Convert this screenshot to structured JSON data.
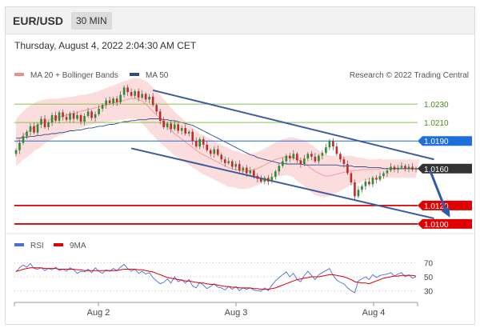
{
  "header": {
    "symbol": "EUR/USD",
    "timeframe": "30 MIN"
  },
  "datetime": "Thursday, August 4, 2022 2:04:30 AM CET",
  "copyright": "Research © 2022 Trading Central",
  "colors": {
    "bollinger": "#f28b8b",
    "ma50": "#2e4a8c",
    "channel": "#3b5ba0",
    "support": "#e00000",
    "resistance": "#1e6fd9",
    "current": "#333333",
    "target_green": "#8bc34a",
    "rsi": "#4a6fd8",
    "rsi_ma": "#e00000"
  },
  "chart_data": [
    {
      "type": "candlestick",
      "legend": [
        {
          "name": "MA 20 + Bollinger Bands",
          "color": "#f28b8b"
        },
        {
          "name": "MA 50",
          "color": "#2e4a8c"
        }
      ],
      "x_ticks": [
        "Aug 2",
        "Aug 3",
        "Aug 4"
      ],
      "ylim": [
        1.0093,
        1.027
      ],
      "levels": [
        {
          "value": "1.0230",
          "kind": "target"
        },
        {
          "value": "1.0210",
          "kind": "target"
        },
        {
          "value": "1.0190",
          "kind": "resistance"
        },
        {
          "value": "1.0160",
          "kind": "current"
        },
        {
          "value": "1.0120",
          "kind": "support"
        },
        {
          "value": "1.0100",
          "kind": "support"
        }
      ],
      "close": [
        1.018,
        1.0188,
        1.0195,
        1.02,
        1.0206,
        1.0199,
        1.0208,
        1.0214,
        1.0205,
        1.021,
        1.0218,
        1.0212,
        1.0221,
        1.0216,
        1.0213,
        1.022,
        1.0214,
        1.0218,
        1.0211,
        1.0217,
        1.0222,
        1.0215,
        1.0219,
        1.0225,
        1.0229,
        1.0234,
        1.0231,
        1.0236,
        1.0232,
        1.024,
        1.0248,
        1.0243,
        1.0239,
        1.0244,
        1.0237,
        1.0241,
        1.0235,
        1.0238,
        1.0229,
        1.0222,
        1.0212,
        1.0205,
        1.0209,
        1.0203,
        1.0208,
        1.0201,
        1.0204,
        1.0198,
        1.02,
        1.019,
        1.0184,
        1.0192,
        1.0186,
        1.018,
        1.0176,
        1.0181,
        1.0175,
        1.017,
        1.0166,
        1.0168,
        1.0162,
        1.0165,
        1.0158,
        1.0161,
        1.0155,
        1.0158,
        1.0152,
        1.0149,
        1.0146,
        1.015,
        1.0146,
        1.0151,
        1.0157,
        1.0163,
        1.0168,
        1.0174,
        1.0171,
        1.0176,
        1.0169,
        1.0165,
        1.0171,
        1.0176,
        1.0173,
        1.0168,
        1.0174,
        1.0177,
        1.0183,
        1.019,
        1.0184,
        1.0176,
        1.017,
        1.0165,
        1.0155,
        1.0145,
        1.013,
        1.0137,
        1.0141,
        1.0146,
        1.0143,
        1.015,
        1.0148,
        1.0152,
        1.0155,
        1.0158,
        1.0162,
        1.0159,
        1.0161,
        1.0163,
        1.016,
        1.0162,
        1.0159,
        1.016
      ],
      "bollinger_mid": [
        1.0188,
        1.0192,
        1.0196,
        1.0199,
        1.0202,
        1.0205,
        1.0207,
        1.0209,
        1.0211,
        1.0213,
        1.0214,
        1.0215,
        1.0216,
        1.0217,
        1.0218,
        1.0219,
        1.022,
        1.0221,
        1.0222,
        1.0223,
        1.0224,
        1.0225,
        1.0226,
        1.0227,
        1.0228,
        1.0229,
        1.023,
        1.0231,
        1.0232,
        1.0233,
        1.0234,
        1.0235,
        1.0236,
        1.0236,
        1.0235,
        1.0233,
        1.023,
        1.0226,
        1.0222,
        1.0218,
        1.0214,
        1.021,
        1.0206,
        1.0202,
        1.0198,
        1.0195,
        1.0192,
        1.0189,
        1.0186,
        1.0183,
        1.018,
        1.0177,
        1.0175,
        1.0173,
        1.0171,
        1.0169,
        1.0167,
        1.0165,
        1.0163,
        1.0161,
        1.016,
        1.0159,
        1.0158,
        1.0157,
        1.0157,
        1.0158,
        1.0159,
        1.016,
        1.0162,
        1.0164,
        1.0166,
        1.0168,
        1.017,
        1.0171,
        1.0172,
        1.0173,
        1.0173,
        1.0172,
        1.017,
        1.0168,
        1.0166,
        1.0163,
        1.016,
        1.0157,
        1.0155,
        1.0153,
        1.0152,
        1.0152,
        1.0153,
        1.0154,
        1.0155,
        1.0156,
        1.0157,
        1.0158,
        1.0158,
        1.0158,
        1.0159,
        1.0159,
        1.0159,
        1.0159,
        1.0159,
        1.016,
        1.016,
        1.016,
        1.016,
        1.016,
        1.016,
        1.016,
        1.016,
        1.016,
        1.016,
        1.016,
        1.016
      ],
      "bollinger_width": [
        0.0025,
        0.0026,
        0.0026,
        0.0027,
        0.0027,
        0.0026,
        0.0026,
        0.0025,
        0.0024,
        0.0023,
        0.0022,
        0.0021,
        0.002,
        0.002,
        0.0019,
        0.0019,
        0.0018,
        0.0018,
        0.0018,
        0.0017,
        0.0017,
        0.0017,
        0.0017,
        0.0017,
        0.0018,
        0.0018,
        0.0019,
        0.0019,
        0.002,
        0.002,
        0.0021,
        0.0021,
        0.0022,
        0.0022,
        0.0023,
        0.0024,
        0.0025,
        0.0026,
        0.0026,
        0.0026,
        0.0026,
        0.0025,
        0.0025,
        0.0024,
        0.0024,
        0.0023,
        0.0023,
        0.0022,
        0.0022,
        0.0022,
        0.0021,
        0.0021,
        0.0021,
        0.0021,
        0.0021,
        0.0021,
        0.0021,
        0.0021,
        0.0021,
        0.0021,
        0.002,
        0.002,
        0.002,
        0.0019,
        0.0019,
        0.0019,
        0.0018,
        0.0018,
        0.0018,
        0.0018,
        0.0018,
        0.0018,
        0.0019,
        0.0019,
        0.002,
        0.002,
        0.0021,
        0.0022,
        0.0023,
        0.0024,
        0.0025,
        0.0026,
        0.0026,
        0.0026,
        0.0025,
        0.0024,
        0.0023,
        0.0022,
        0.0021,
        0.002,
        0.0019,
        0.0018,
        0.0017,
        0.0016,
        0.0015,
        0.0014,
        0.0013,
        0.0012,
        0.0011,
        0.0011,
        0.0011,
        0.0011,
        0.001,
        0.001,
        0.001,
        0.001,
        0.001,
        0.001,
        0.001,
        0.001,
        0.001,
        0.001,
        0.001,
        0.001
      ],
      "ma50": [
        1.0193,
        1.0193,
        1.0194,
        1.0194,
        1.0195,
        1.0195,
        1.0196,
        1.0196,
        1.0197,
        1.0197,
        1.0198,
        1.0198,
        1.0199,
        1.0199,
        1.02,
        1.0201,
        1.0201,
        1.0202,
        1.0202,
        1.0203,
        1.0204,
        1.0204,
        1.0205,
        1.0206,
        1.0206,
        1.0207,
        1.0208,
        1.0208,
        1.0209,
        1.021,
        1.0211,
        1.0211,
        1.0212,
        1.0212,
        1.0213,
        1.0213,
        1.0213,
        1.0214,
        1.0214,
        1.0214,
        1.0214,
        1.0213,
        1.0213,
        1.0212,
        1.0212,
        1.0211,
        1.021,
        1.0209,
        1.0208,
        1.0207,
        1.0205,
        1.0203,
        1.0201,
        1.0199,
        1.0197,
        1.0195,
        1.0193,
        1.0191,
        1.0189,
        1.0187,
        1.0185,
        1.0183,
        1.0181,
        1.0179,
        1.0177,
        1.0175,
        1.0174,
        1.0172,
        1.0171,
        1.017,
        1.0169,
        1.0168,
        1.0167,
        1.0166,
        1.0166,
        1.0165,
        1.0165,
        1.0165,
        1.0165,
        1.0165,
        1.0164,
        1.0164,
        1.0164,
        1.0164,
        1.0164,
        1.0164,
        1.0164,
        1.0164,
        1.0164,
        1.0164,
        1.0163,
        1.0163,
        1.0163,
        1.0163,
        1.0162,
        1.0162,
        1.0162,
        1.0162,
        1.0161,
        1.0161,
        1.0161,
        1.0161,
        1.016,
        1.016,
        1.016,
        1.016,
        1.016,
        1.016,
        1.016,
        1.016,
        1.016,
        1.016,
        1.016
      ],
      "channel": [
        {
          "from": [
            38,
            1.0245
          ],
          "to": [
            116,
            1.017
          ]
        },
        {
          "from": [
            32,
            1.0182
          ],
          "to": [
            116,
            1.0106
          ]
        }
      ],
      "forecast_arrow": {
        "from": [
          115,
          1.0157
        ],
        "to": [
          120,
          1.0108
        ]
      }
    },
    {
      "type": "line",
      "legend": [
        {
          "name": "RSI",
          "color": "#4a6fd8"
        },
        {
          "name": "9MA",
          "color": "#e00000"
        }
      ],
      "y_ticks": [
        "70",
        "50",
        "30"
      ],
      "ylim": [
        20,
        80
      ],
      "rsi": [
        57,
        63,
        67,
        64,
        69,
        62,
        61,
        63,
        59,
        62,
        60,
        64,
        59,
        61,
        58,
        63,
        60,
        55,
        58,
        57,
        61,
        56,
        63,
        58,
        55,
        60,
        58,
        62,
        59,
        64,
        68,
        62,
        58,
        61,
        55,
        58,
        54,
        56,
        49,
        44,
        40,
        42,
        47,
        41,
        50,
        43,
        46,
        41,
        46,
        37,
        34,
        42,
        38,
        33,
        36,
        40,
        35,
        34,
        31,
        36,
        32,
        36,
        30,
        34,
        32,
        34,
        31,
        30,
        29,
        34,
        30,
        38,
        44,
        49,
        53,
        57,
        50,
        55,
        46,
        43,
        52,
        58,
        52,
        46,
        53,
        56,
        59,
        62,
        52,
        45,
        42,
        40,
        34,
        30,
        27,
        44,
        47,
        50,
        46,
        53,
        49,
        52,
        53,
        54,
        56,
        51,
        54,
        56,
        50,
        53,
        48,
        50
      ],
      "rsi_ma": [
        58,
        59,
        61,
        62,
        63,
        63,
        63,
        63,
        62,
        62,
        62,
        62,
        61,
        61,
        61,
        61,
        61,
        60,
        60,
        59,
        59,
        59,
        59,
        59,
        59,
        59,
        59,
        59,
        59,
        60,
        61,
        61,
        61,
        61,
        60,
        60,
        59,
        58,
        57,
        55,
        53,
        51,
        49,
        48,
        47,
        46,
        45,
        44,
        44,
        43,
        42,
        41,
        41,
        40,
        39,
        39,
        38,
        37,
        36,
        36,
        35,
        35,
        34,
        34,
        34,
        34,
        33,
        33,
        32,
        32,
        32,
        33,
        34,
        36,
        38,
        40,
        42,
        44,
        46,
        47,
        48,
        49,
        50,
        50,
        50,
        51,
        52,
        53,
        53,
        52,
        51,
        50,
        48,
        46,
        43,
        42,
        41,
        41,
        40,
        42,
        44,
        46,
        48,
        49,
        50,
        51,
        51,
        52,
        52,
        52,
        52,
        51
      ]
    }
  ]
}
